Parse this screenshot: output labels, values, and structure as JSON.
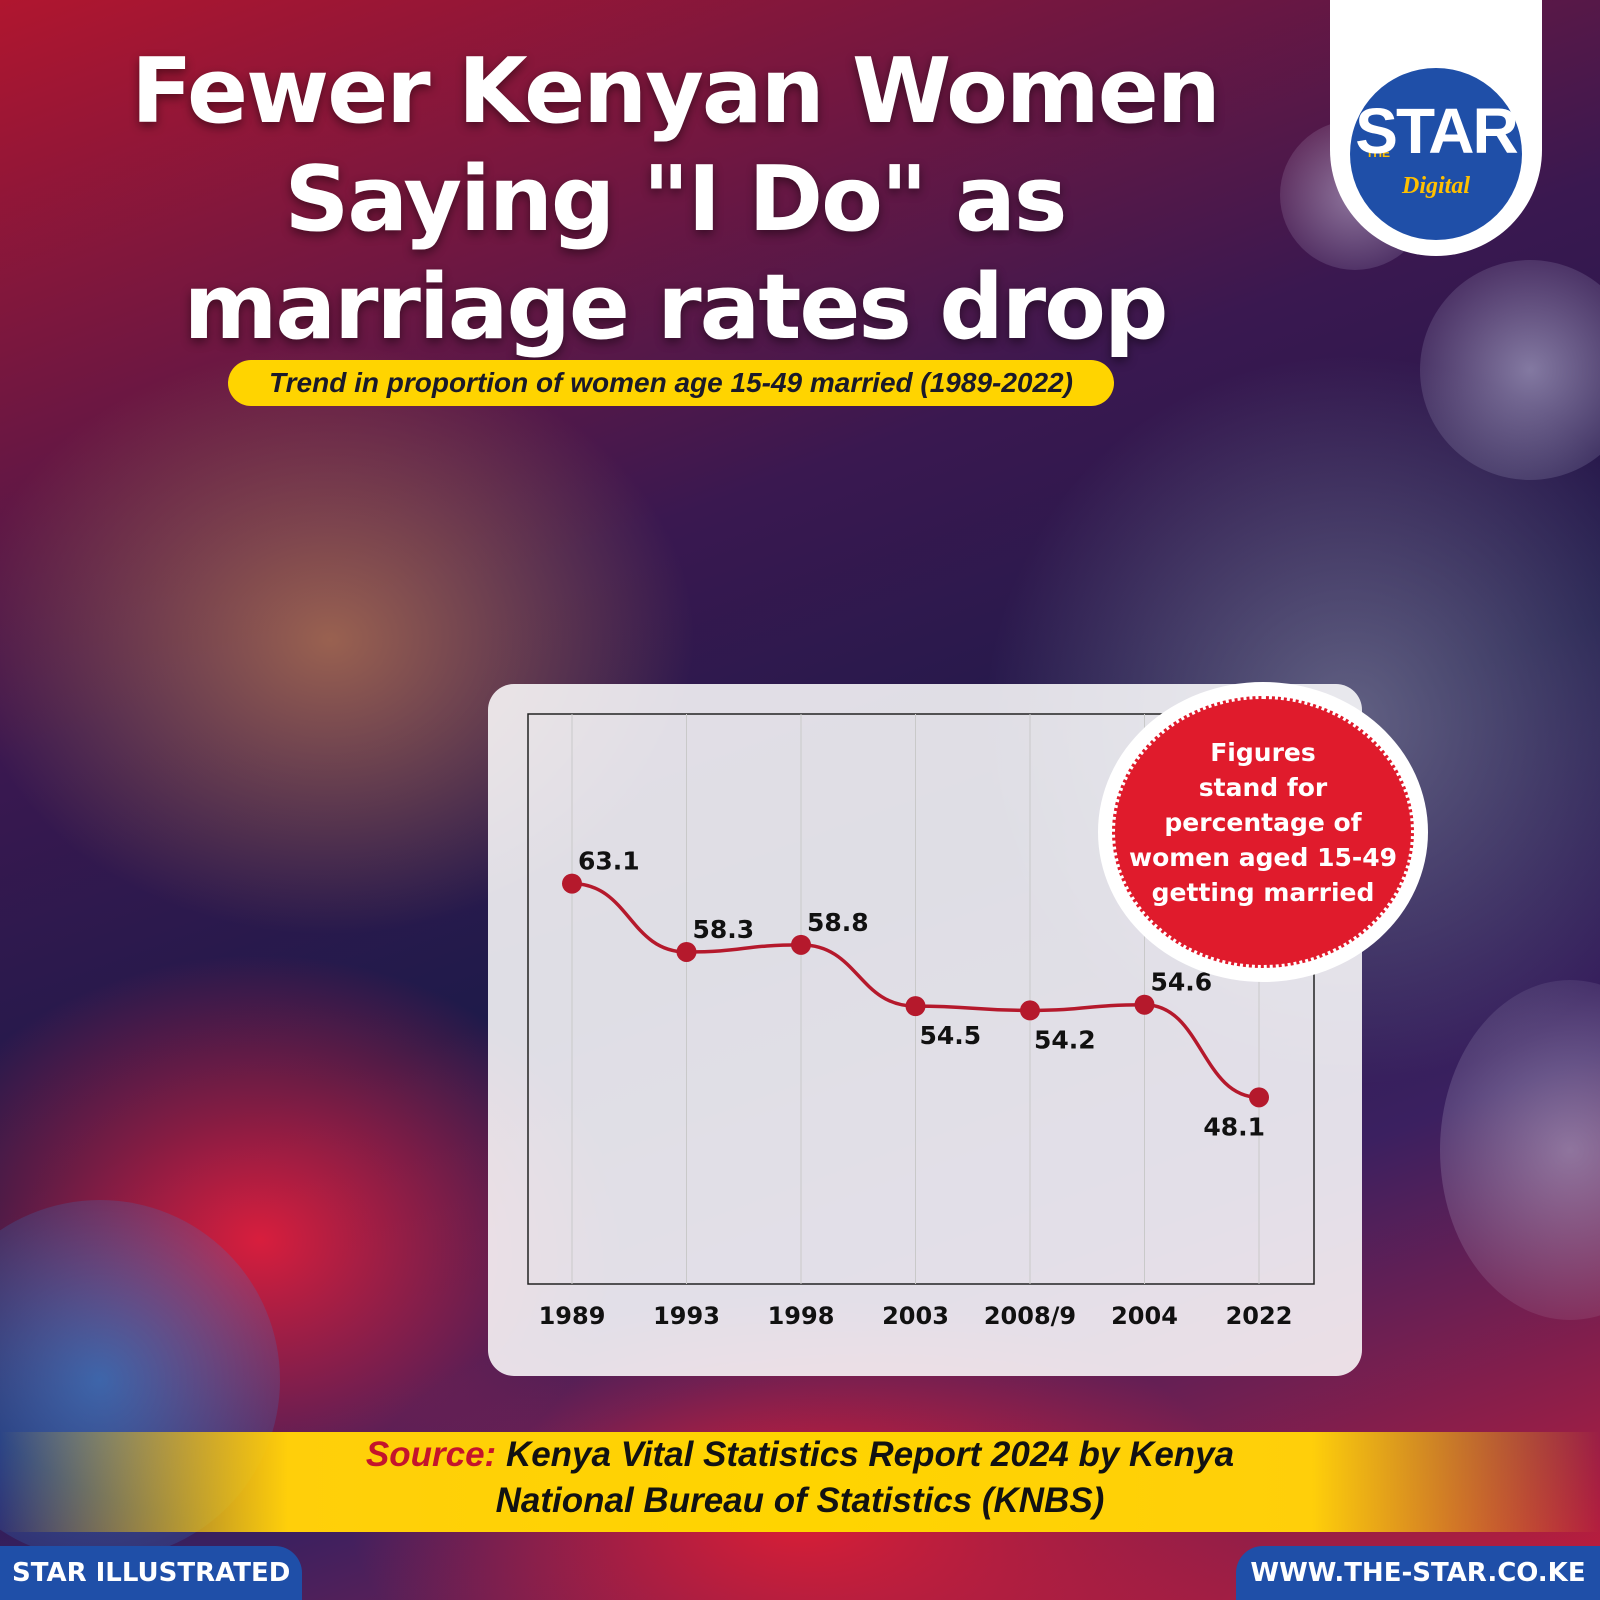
{
  "title_lines": [
    "Fewer Kenyan Women",
    "Saying \"I Do\" as",
    "marriage rates drop"
  ],
  "subtitle": "Trend in proportion of women age 15-49 married (1989-2022)",
  "logo": {
    "the": "THE",
    "star": "STAR",
    "digital": "Digital"
  },
  "badge": {
    "lines": [
      "Figures",
      "stand for",
      "percentage of",
      "women aged 15-49",
      "getting married"
    ]
  },
  "source": {
    "label": "Source:",
    "line1": "Kenya Vital Statistics Report 2024 by Kenya",
    "line2": "National Bureau of Statistics (KNBS)"
  },
  "footer": {
    "left": "STAR ILLUSTRATED",
    "right": "WWW.THE-STAR.CO.KE"
  },
  "colors": {
    "line": "#b5192c",
    "accent": "#1f4fa8",
    "highlight": "#ffd400"
  },
  "chart_data": {
    "type": "line",
    "categories": [
      "1989",
      "1993",
      "1998",
      "2003",
      "2008/9",
      "2004",
      "2022"
    ],
    "values": [
      63.1,
      58.3,
      58.8,
      54.5,
      54.2,
      54.6,
      48.1
    ],
    "labels": [
      "63.1",
      "58.3",
      "58.8",
      "54.5",
      "54.2",
      "54.6",
      "48.1"
    ],
    "label_side": [
      "above",
      "above",
      "above",
      "below",
      "below",
      "above",
      "below"
    ],
    "title": "Trend in proportion of women age 15-49 married (1989-2022)",
    "xlabel": "",
    "ylabel": "",
    "grid": "vertical",
    "ylim": [
      35,
      75
    ]
  }
}
